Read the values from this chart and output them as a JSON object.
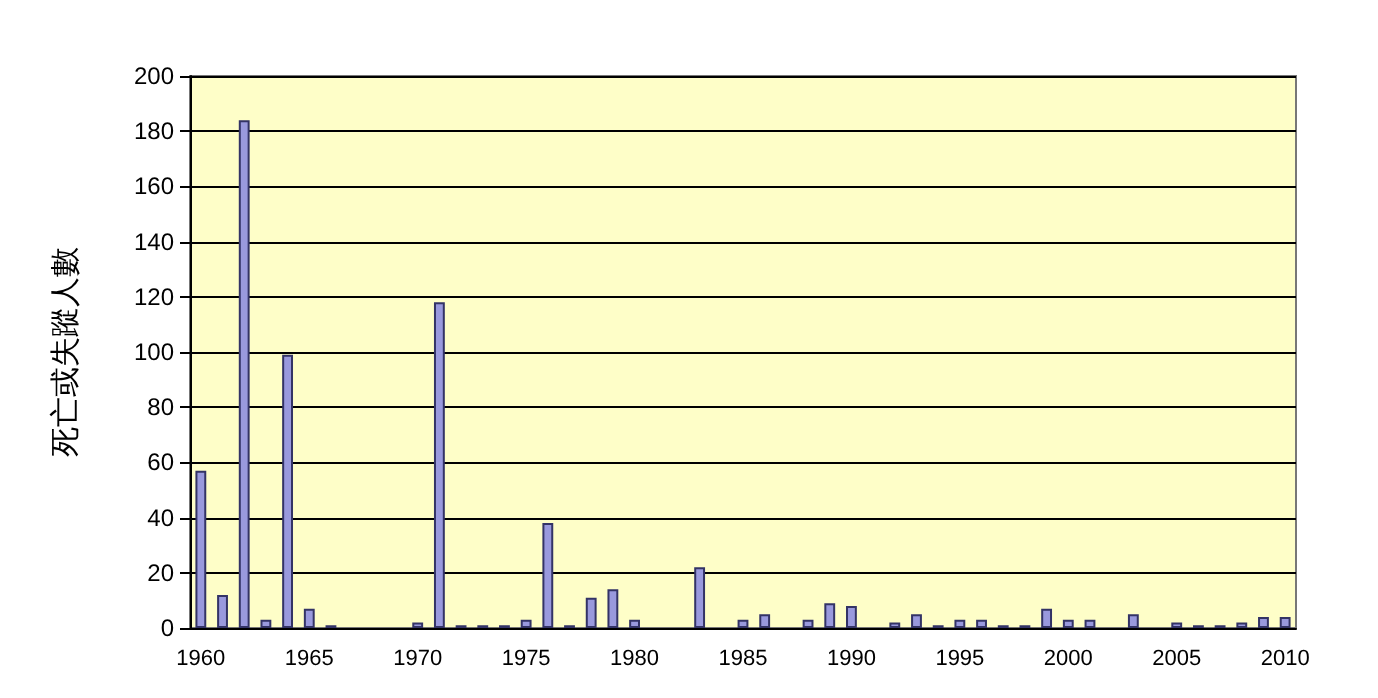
{
  "chart_data": {
    "type": "bar",
    "ylabel": "死亡或失蹤人數",
    "categories": [
      "1960",
      null,
      null,
      null,
      null,
      "1965",
      null,
      null,
      null,
      null,
      "1970",
      null,
      null,
      null,
      null,
      "1975",
      null,
      null,
      null,
      null,
      "1980",
      null,
      null,
      null,
      null,
      "1985",
      null,
      null,
      null,
      null,
      "1990",
      null,
      null,
      null,
      null,
      "1995",
      null,
      null,
      null,
      null,
      "2000",
      null,
      null,
      null,
      null,
      "2005",
      null,
      null,
      null,
      null,
      "2010"
    ],
    "values": [
      57,
      12,
      184,
      3,
      99,
      7,
      1,
      0,
      0,
      0,
      2,
      118,
      1,
      1,
      1,
      3,
      38,
      1,
      11,
      14,
      3,
      0,
      0,
      22,
      0,
      3,
      5,
      0,
      3,
      9,
      8,
      0,
      2,
      5,
      1,
      3,
      3,
      1,
      1,
      7,
      3,
      3,
      0,
      5,
      0,
      2,
      1,
      1,
      2,
      4,
      4
    ],
    "color": "#9999dd",
    "ylim": [
      0,
      200
    ],
    "yticks": [
      0,
      20,
      40,
      60,
      80,
      100,
      120,
      140,
      160,
      180,
      200
    ],
    "grid": "y"
  }
}
